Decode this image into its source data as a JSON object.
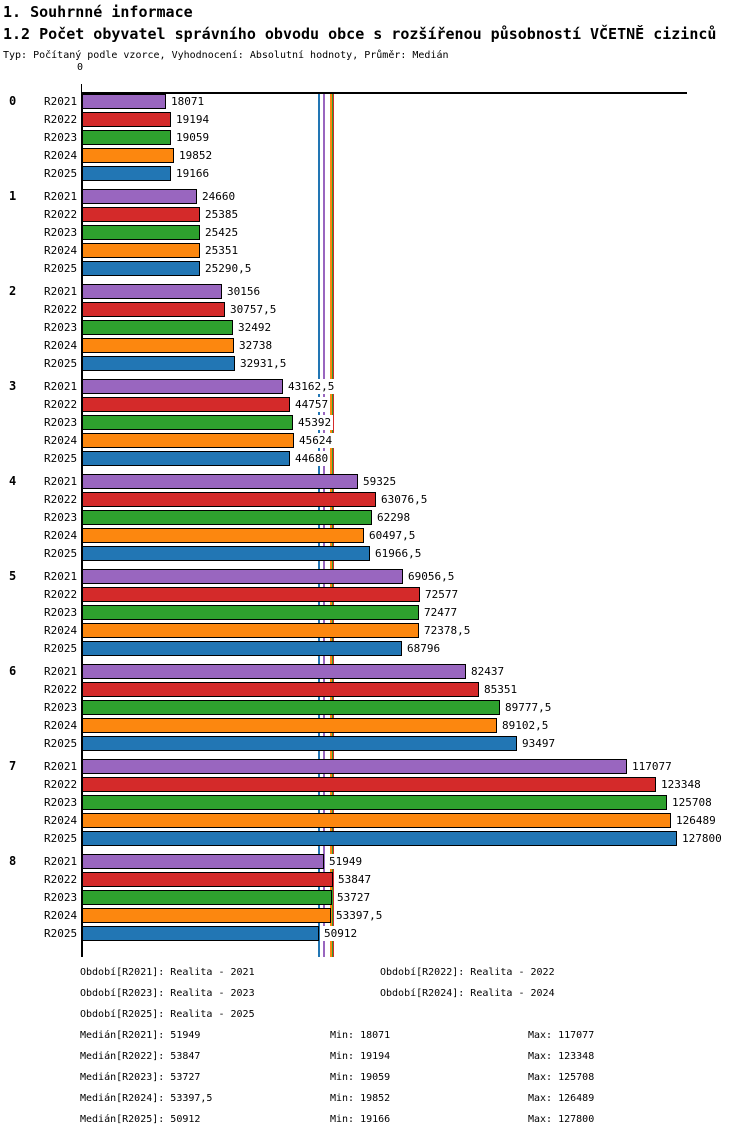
{
  "header": {
    "title1": "1. Souhrnné informace"
  },
  "chart_data": {
    "type": "bar",
    "orientation": "horizontal",
    "title": "1.2 Počet obyvatel správního obvodu obce s rozšířenou působností VČETNĚ cizinců",
    "subtitle": "Typ: Počítaný podle vzorce, Vyhodnocení: Absolutní hodnoty, Průměr: Medián",
    "axis": {
      "origin_label": "0",
      "max": 130000
    },
    "series_labels": [
      "R2021",
      "R2022",
      "R2023",
      "R2024",
      "R2025"
    ],
    "series_colors": {
      "R2021": "#9966bf",
      "R2022": "#d42a2a",
      "R2023": "#2ea12e",
      "R2024": "#fc870f",
      "R2025": "#2276b4"
    },
    "groups": [
      {
        "label": "0",
        "values": [
          18071,
          19194,
          19059,
          19852,
          19166
        ]
      },
      {
        "label": "1",
        "values": [
          24660,
          25385,
          25425,
          25351,
          25290.5
        ]
      },
      {
        "label": "2",
        "values": [
          30156,
          30757.5,
          32492,
          32738,
          32931.5
        ]
      },
      {
        "label": "3",
        "values": [
          43162.5,
          44757,
          45392,
          45624,
          44680
        ]
      },
      {
        "label": "4",
        "values": [
          59325,
          63076.5,
          62298,
          60497.5,
          61966.5
        ]
      },
      {
        "label": "5",
        "values": [
          69056.5,
          72577,
          72477,
          72378.5,
          68796
        ]
      },
      {
        "label": "6",
        "values": [
          82437,
          85351,
          89777.5,
          89102.5,
          93497
        ]
      },
      {
        "label": "7",
        "values": [
          117077,
          123348,
          125708,
          126489,
          127800
        ]
      },
      {
        "label": "8",
        "values": [
          51949,
          53847,
          53727,
          53397.5,
          50912
        ]
      }
    ],
    "median_lines": [
      {
        "key": "R2021",
        "value": 51949
      },
      {
        "key": "R2022",
        "value": 53847
      },
      {
        "key": "R2023",
        "value": 53727
      },
      {
        "key": "R2024",
        "value": 53397.5
      },
      {
        "key": "R2025",
        "value": 50912
      }
    ],
    "legend_position": "bottom"
  },
  "legend": {
    "prefix": "Období",
    "items": [
      {
        "key": "R2021",
        "label": "Realita - 2021"
      },
      {
        "key": "R2022",
        "label": "Realita - 2022"
      },
      {
        "key": "R2023",
        "label": "Realita - 2023"
      },
      {
        "key": "R2024",
        "label": "Realita - 2024"
      },
      {
        "key": "R2025",
        "label": "Realita - 2025"
      }
    ]
  },
  "stats": {
    "median_prefix": "Medián",
    "min_prefix": "Min",
    "max_prefix": "Max",
    "rows": [
      {
        "key": "R2021",
        "median": 51949,
        "min": 18071,
        "max": 117077
      },
      {
        "key": "R2022",
        "median": 53847,
        "min": 19194,
        "max": 123348
      },
      {
        "key": "R2023",
        "median": 53727,
        "min": 19059,
        "max": 125708
      },
      {
        "key": "R2024",
        "median": 53397.5,
        "min": 19852,
        "max": 126489
      },
      {
        "key": "R2025",
        "median": 50912,
        "min": 19166,
        "max": 127800
      }
    ]
  }
}
